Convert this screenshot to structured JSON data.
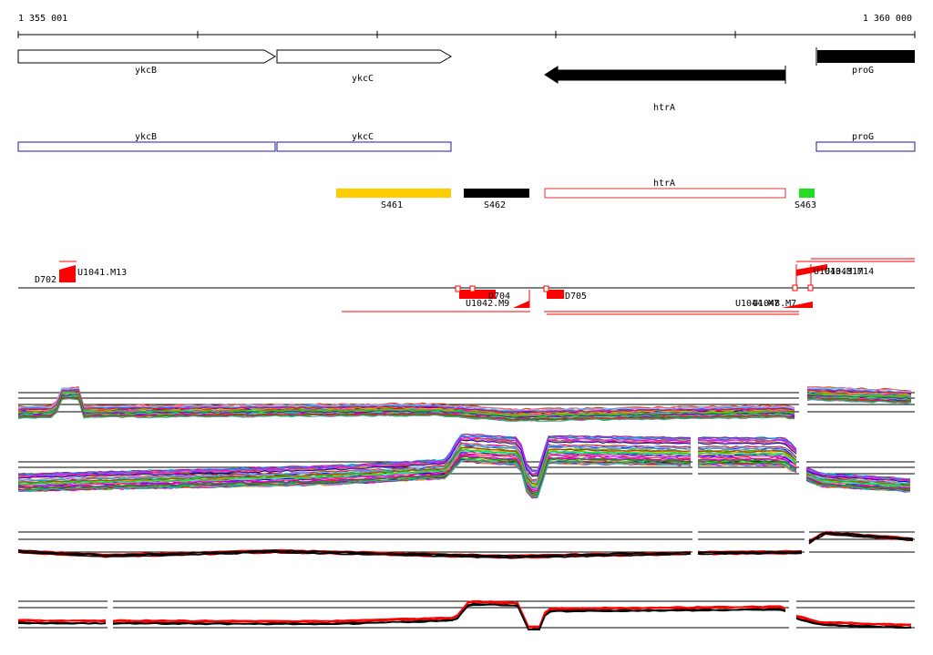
{
  "coords": {
    "start_label": "1 355 001",
    "end_label": "1 360 000"
  },
  "genes": [
    {
      "name": "ykcB",
      "strand": "+",
      "filled": false
    },
    {
      "name": "ykcC",
      "strand": "+",
      "filled": false
    },
    {
      "name": "htrA",
      "strand": "-",
      "filled": true
    },
    {
      "name": "proG",
      "strand": "+",
      "filled": true
    }
  ],
  "cds": [
    {
      "name": "ykcB",
      "color": "#1a1aa6"
    },
    {
      "name": "ykcC",
      "color": "#1a1aa6"
    },
    {
      "name": "proG",
      "color": "#1a1aa6"
    }
  ],
  "segments": [
    {
      "name": "S461",
      "color": "#ffcc00"
    },
    {
      "name": "S462",
      "color": "#000000"
    },
    {
      "name": "htrA",
      "color": "#e03030",
      "outline": true
    },
    {
      "name": "S463",
      "color": "#22dd22"
    }
  ],
  "features": {
    "top": [
      "U1041.M13",
      "D702",
      "U1043.M17",
      "U1043.M14"
    ],
    "bottom": [
      "D704",
      "U1042.M9",
      "D705",
      "U1044.M7",
      "U1048.M7"
    ]
  },
  "colors": {
    "feature_red": "#ff0000",
    "track_line": "#000000",
    "gene_fill": "#000000",
    "cds_outline": "#1a1aa6"
  },
  "expression_panels": [
    {
      "name": "condition-panel-1",
      "style": "multicolor"
    },
    {
      "name": "condition-panel-2",
      "style": "multicolor"
    },
    {
      "name": "summary-panel-1",
      "style": "red-black"
    },
    {
      "name": "summary-panel-2",
      "style": "red-black"
    }
  ]
}
